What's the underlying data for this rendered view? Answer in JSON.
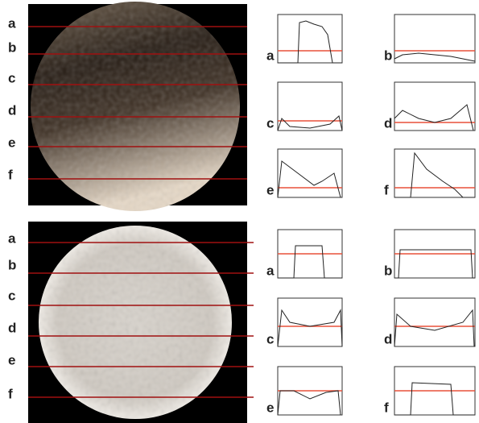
{
  "panels": [
    {
      "image_labels": [
        "a",
        "b",
        "c",
        "d",
        "e",
        "f"
      ],
      "plot_labels": [
        "a",
        "b",
        "c",
        "d",
        "e",
        "f"
      ]
    },
    {
      "image_labels": [
        "a",
        "b",
        "c",
        "d",
        "e",
        "f"
      ],
      "plot_labels": [
        "a",
        "b",
        "c",
        "d",
        "e",
        "f"
      ]
    }
  ]
}
